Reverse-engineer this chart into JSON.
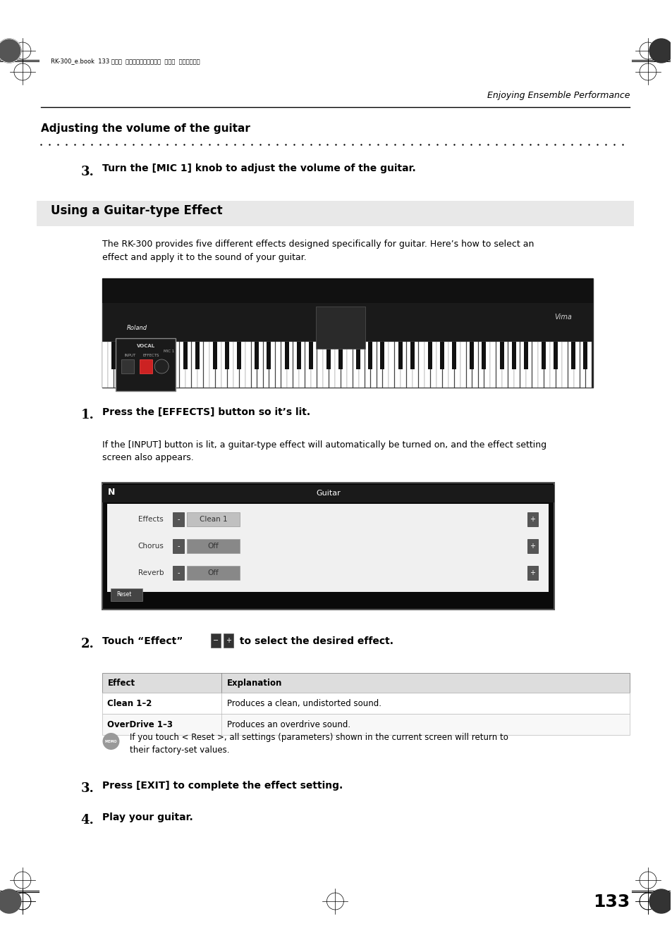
{
  "page_width": 9.54,
  "page_height": 13.51,
  "bg_color": "#ffffff",
  "header_text": "RK-300_e.book  133 ページ  ２００８年９月１０日  水曜日  午後４時６分",
  "header_right": "Enjoying Ensemble Performance",
  "section1_title": "Adjusting the volume of the guitar",
  "step3_text": "Turn the [MIC 1] knob to adjust the volume of the guitar.",
  "section2_title": "Using a Guitar-type Effect",
  "section2_bg": "#e8e8e8",
  "intro_text": "The RK-300 provides five different effects designed specifically for guitar. Here’s how to select an\neffect and apply it to the sound of your guitar.",
  "step1_title": "Press the [EFFECTS] button so it’s lit.",
  "step1_desc": "If the [INPUT] button is lit, a guitar-type effect will automatically be turned on, and the effect setting\nscreen also appears.",
  "step2_title": "Touch “Effect”",
  "step2_title2": " to select the desired effect.",
  "table_headers": [
    "Effect",
    "Explanation"
  ],
  "table_rows": [
    [
      "Clean 1–2",
      "Produces a clean, undistorted sound."
    ],
    [
      "OverDrive 1–3",
      "Produces an overdrive sound."
    ]
  ],
  "memo_text": "If you touch < Reset >, all settings (parameters) shown in the current screen will return to\ntheir factory-set values.",
  "step3b_text": "Press [EXIT] to complete the effect setting.",
  "step4_text": "Play your guitar.",
  "page_number": "133",
  "guitar_screen_title": "Guitar",
  "guitar_screen_rows": [
    {
      "label": "Effects",
      "value": "Clean 1"
    },
    {
      "label": "Chorus",
      "value": "Off"
    },
    {
      "label": "Reverb",
      "value": "Off"
    }
  ]
}
